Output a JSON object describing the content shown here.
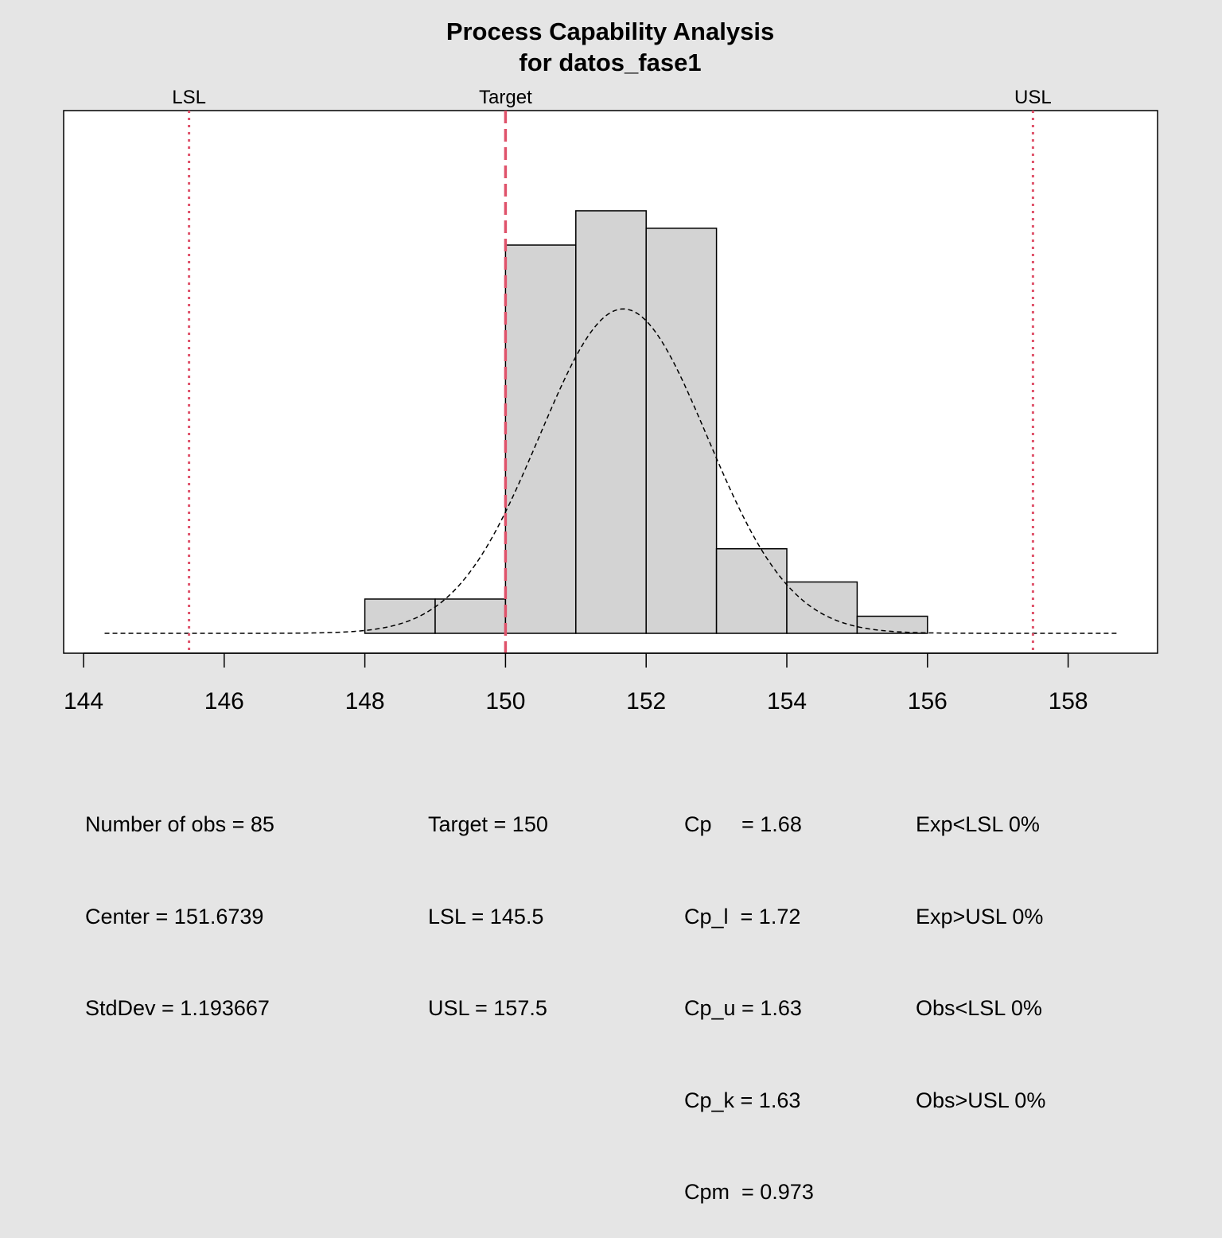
{
  "chart_data": {
    "type": "bar",
    "title": "Process Capability Analysis",
    "subtitle": "for datos_fase1",
    "xlim": [
      144,
      158
    ],
    "x_ticks": [
      "144",
      "146",
      "148",
      "150",
      "152",
      "154",
      "156",
      "158"
    ],
    "bins": [
      {
        "from": 148,
        "to": 149,
        "density": 0.0353
      },
      {
        "from": 149,
        "to": 150,
        "density": 0.0353
      },
      {
        "from": 150,
        "to": 151,
        "density": 0.4
      },
      {
        "from": 151,
        "to": 152,
        "density": 0.4353
      },
      {
        "from": 152,
        "to": 153,
        "density": 0.4173
      },
      {
        "from": 153,
        "to": 154,
        "density": 0.0871
      },
      {
        "from": 154,
        "to": 155,
        "density": 0.0529
      },
      {
        "from": 155,
        "to": 156,
        "density": 0.0176
      }
    ],
    "normal_curve": {
      "mean": 151.6739,
      "sd": 1.193667,
      "from": 144.3,
      "to": 158.7
    },
    "spec_lines": [
      {
        "label": "LSL",
        "value": 145.5,
        "style": "dotted"
      },
      {
        "label": "Target",
        "value": 150,
        "style": "dashed"
      },
      {
        "label": "USL",
        "value": 157.5,
        "style": "dotted"
      }
    ],
    "colors": {
      "background": "#e5e5e5",
      "panel": "#ffffff",
      "bar_fill": "#d3d3d3",
      "spec_line": "#df536b"
    }
  },
  "stats": {
    "col1": [
      "Number of obs = 85",
      "Center = 151.6739",
      "StdDev = 1.193667"
    ],
    "col2": [
      "Target = 150",
      "LSL = 145.5",
      "USL = 157.5"
    ],
    "col3": [
      "Cp     = 1.68",
      "Cp_l  = 1.72",
      "Cp_u = 1.63",
      "Cp_k = 1.63",
      "Cpm  = 0.973"
    ],
    "col4": [
      "Exp<LSL 0%",
      "Exp>USL 0%",
      "Obs<LSL 0%",
      "Obs>USL 0%"
    ]
  }
}
